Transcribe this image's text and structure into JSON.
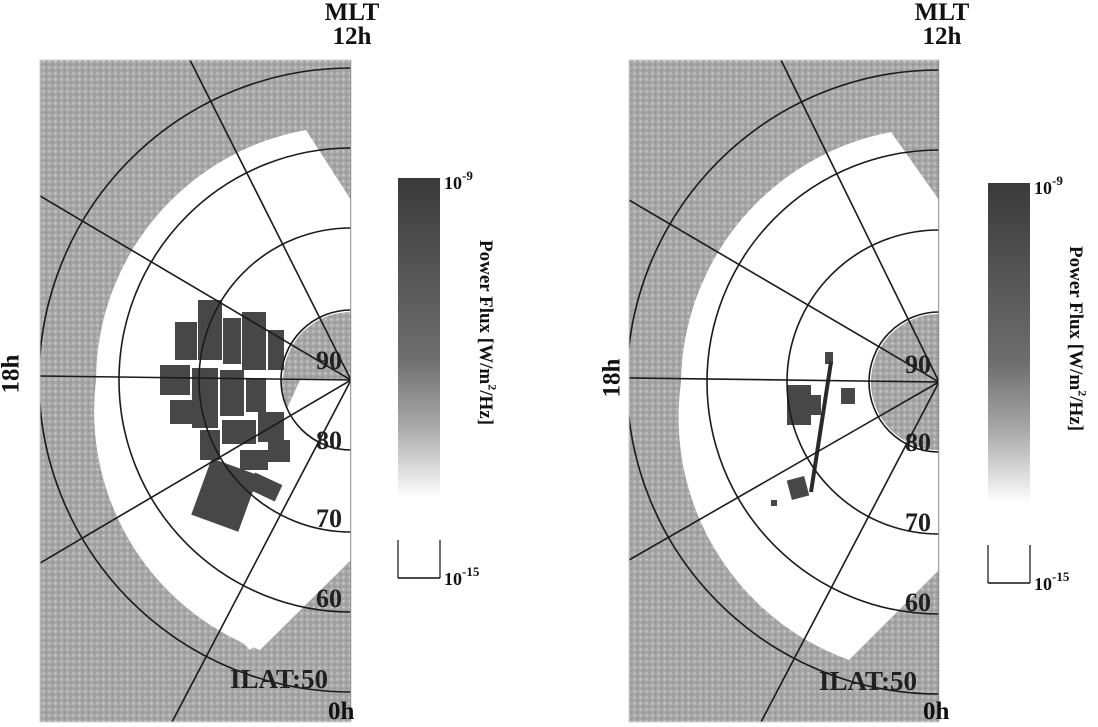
{
  "panels": [
    {
      "id": "left",
      "mlt_title": "MLT",
      "mlt_12": "12h",
      "mlt_18": "18h",
      "mlt_0": "0h",
      "lat_labels": [
        "90",
        "80",
        "70",
        "60"
      ],
      "ilat_label": "ILAT:50",
      "colorbar": {
        "top": "10",
        "top_exp": "-9",
        "bottom": "10",
        "bottom_exp": "-15",
        "title_pre": "Power Flux [W/m",
        "title_sup": "2",
        "title_post": "/Hz]"
      }
    },
    {
      "id": "right",
      "mlt_title": "MLT",
      "mlt_12": "12h",
      "mlt_18": "18h",
      "mlt_0": "0h",
      "lat_labels": [
        "90",
        "80",
        "70",
        "60"
      ],
      "ilat_label": "ILAT:50",
      "colorbar": {
        "top": "10",
        "top_exp": "-9",
        "bottom": "10",
        "bottom_exp": "-15",
        "title_pre": "Power Flux [W/m",
        "title_sup": "2",
        "title_post": "/Hz]"
      }
    }
  ],
  "colors": {
    "background_shade": "#a4a4a4",
    "white_zone": "#ffffff",
    "data_dark": "#474747",
    "colorbar_top": "#3a3a3a",
    "grid_line": "#1a1a1a"
  }
}
